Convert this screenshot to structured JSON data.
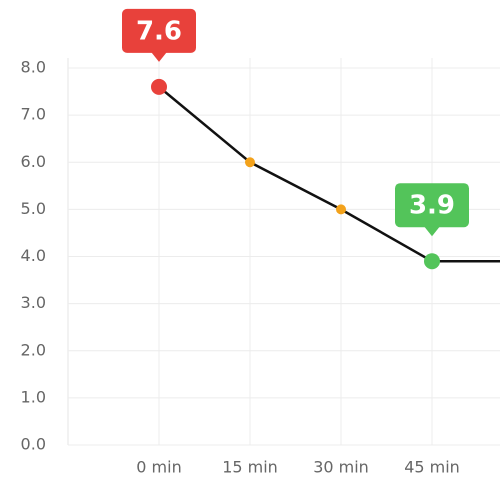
{
  "chart_data": {
    "type": "line",
    "categories": [
      "0 min",
      "15 min",
      "30 min",
      "45 min",
      null
    ],
    "values": [
      7.6,
      6.0,
      5.0,
      3.9,
      3.9
    ],
    "value_labels": [
      "7.6",
      null,
      null,
      "3.9",
      null
    ],
    "point_colors": [
      "#e8413b",
      "#f3a21b",
      "#f3a21b",
      "#53c45a",
      null
    ],
    "color": "#111111",
    "ylim": [
      0,
      8
    ],
    "yticks": [
      {
        "value": 0,
        "label": "0.0"
      },
      {
        "value": 1,
        "label": "1.0"
      },
      {
        "value": 2,
        "label": "2.0"
      },
      {
        "value": 3,
        "label": "3.0"
      },
      {
        "value": 4,
        "label": "4.0"
      },
      {
        "value": 5,
        "label": "5.0"
      },
      {
        "value": 6,
        "label": "6.0"
      },
      {
        "value": 7,
        "label": "7.0"
      },
      {
        "value": 8,
        "label": "8.0"
      }
    ],
    "grid": true
  }
}
